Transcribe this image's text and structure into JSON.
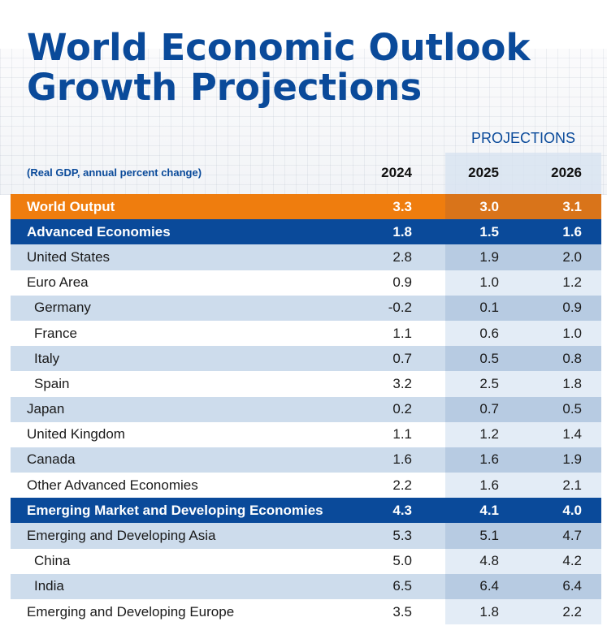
{
  "title_line1": "World Economic Outlook",
  "title_line2": "Growth Projections",
  "projections_label": "PROJECTIONS",
  "subtitle": "(Real GDP, annual percent change)",
  "years": [
    "2024",
    "2025",
    "2026"
  ],
  "colors": {
    "brand_blue": "#0a4a9a",
    "orange": "#ef7d0e",
    "light_row": "#cddcec"
  },
  "chart_data": {
    "type": "table",
    "title": "World Economic Outlook Growth Projections",
    "subtitle": "(Real GDP, annual percent change)",
    "columns": [
      "2024",
      "2025",
      "2026"
    ],
    "projection_columns": [
      "2025",
      "2026"
    ],
    "rows": [
      {
        "name": "World Output",
        "style": "orange",
        "values": [
          "3.3",
          "3.0",
          "3.1"
        ]
      },
      {
        "name": "Advanced Economies",
        "style": "blue",
        "values": [
          "1.8",
          "1.5",
          "1.6"
        ]
      },
      {
        "name": "United States",
        "style": "light",
        "values": [
          "2.8",
          "1.9",
          "2.0"
        ]
      },
      {
        "name": "Euro Area",
        "style": "white",
        "values": [
          "0.9",
          "1.0",
          "1.2"
        ]
      },
      {
        "name": "Germany",
        "style": "light",
        "sub": true,
        "values": [
          "-0.2",
          "0.1",
          "0.9"
        ]
      },
      {
        "name": "France",
        "style": "white",
        "sub": true,
        "values": [
          "1.1",
          "0.6",
          "1.0"
        ]
      },
      {
        "name": "Italy",
        "style": "light",
        "sub": true,
        "values": [
          "0.7",
          "0.5",
          "0.8"
        ]
      },
      {
        "name": "Spain",
        "style": "white",
        "sub": true,
        "values": [
          "3.2",
          "2.5",
          "1.8"
        ]
      },
      {
        "name": "Japan",
        "style": "light",
        "values": [
          "0.2",
          "0.7",
          "0.5"
        ]
      },
      {
        "name": "United Kingdom",
        "style": "white",
        "values": [
          "1.1",
          "1.2",
          "1.4"
        ]
      },
      {
        "name": "Canada",
        "style": "light",
        "values": [
          "1.6",
          "1.6",
          "1.9"
        ]
      },
      {
        "name": "Other Advanced Economies",
        "style": "white",
        "values": [
          "2.2",
          "1.6",
          "2.1"
        ]
      },
      {
        "name": "Emerging Market and Developing Economies",
        "style": "blue",
        "values": [
          "4.3",
          "4.1",
          "4.0"
        ]
      },
      {
        "name": "Emerging and Developing Asia",
        "style": "light",
        "values": [
          "5.3",
          "5.1",
          "4.7"
        ]
      },
      {
        "name": "China",
        "style": "white",
        "sub": true,
        "values": [
          "5.0",
          "4.8",
          "4.2"
        ]
      },
      {
        "name": "India",
        "style": "light",
        "sub": true,
        "values": [
          "6.5",
          "6.4",
          "6.4"
        ]
      },
      {
        "name": "Emerging and Developing Europe",
        "style": "white",
        "values": [
          "3.5",
          "1.8",
          "2.2"
        ]
      }
    ]
  }
}
